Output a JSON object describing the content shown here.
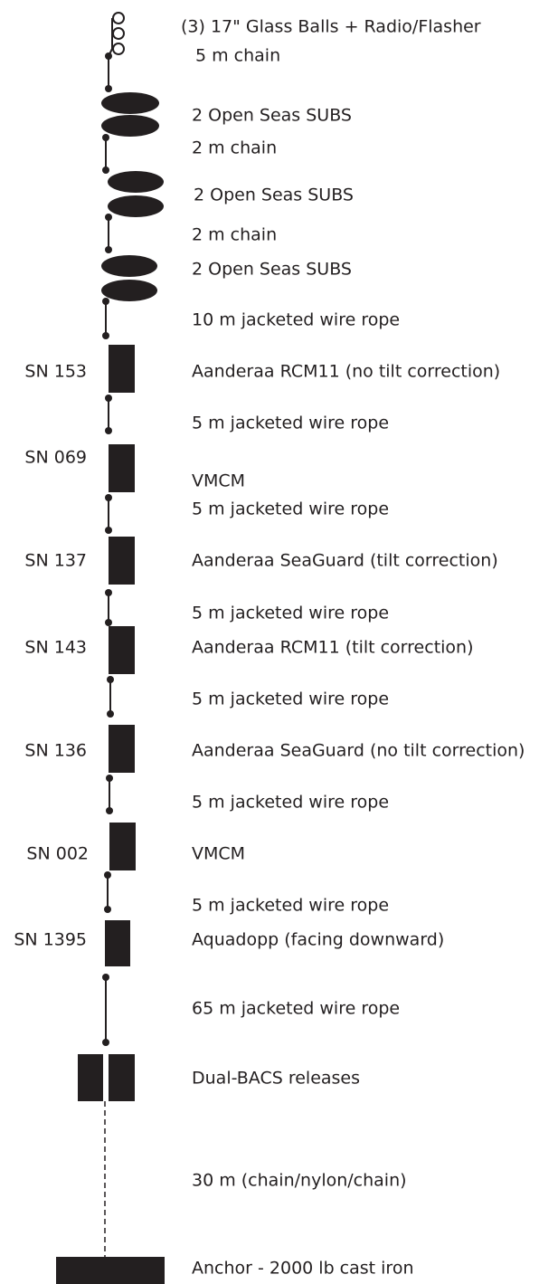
{
  "labels": [
    "(3) 17\" Glass Balls + Radio/Flasher",
    "5 m  chain",
    "2 Open Seas SUBS",
    "2 m  chain",
    "2 Open Seas SUBS",
    "2 m  chain",
    "2 Open Seas SUBS",
    "10 m  jacketed wire rope",
    "Aanderaa RCM11 (no tilt correction)",
    "5 m  jacketed wire rope",
    "VMCM",
    "5 m  jacketed wire rope",
    "Aanderaa SeaGuard (tilt correction)",
    "5 m  jacketed wire rope",
    "Aanderaa RCM11 (tilt correction)",
    "5 m  jacketed wire rope",
    "Aanderaa SeaGuard (no tilt correction)",
    "5 m  jacketed wire rope",
    "VMCM",
    "5 m  jacketed wire rope",
    "Aquadopp (facing downward)",
    "65 m  jacketed wire rope",
    "Dual-BACS releases",
    "30 m  (chain/nylon/chain)",
    "Anchor - 2000 lb cast iron"
  ],
  "serials": [
    "SN 153",
    "SN 069",
    "SN 137",
    "SN 143",
    "SN 136",
    "SN 002",
    "SN 1395"
  ]
}
